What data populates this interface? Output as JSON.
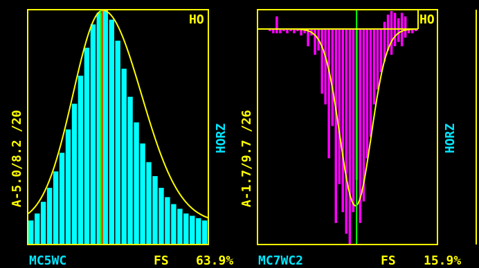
{
  "colors": {
    "background": "#000000",
    "frame": "#ffff00",
    "yellow_text": "#ffff00",
    "cyan_text": "#00e5ff",
    "fit_curve": "#ffff00",
    "center_line_green": "#00ff00",
    "center_line_orange": "#ff8000"
  },
  "panels": [
    {
      "id": "left",
      "side_label": "A-5.0/8.2 /20",
      "corner_label": "HO",
      "axis_label": "HORZ",
      "bottom_name": "MC5WC",
      "bottom_fs": "FS",
      "bottom_pct": "63.9%"
    },
    {
      "id": "right",
      "side_label": "A-1.7/9.7 /26",
      "corner_label": "HO",
      "axis_label": "HORZ",
      "bottom_name": "MC7WC2",
      "bottom_fs": "FS",
      "bottom_pct": "15.9%"
    }
  ],
  "chart_data": [
    {
      "type": "bar",
      "orientation": "up",
      "bar_color": "#00ffff",
      "n_bins": 29,
      "ylim": [
        0,
        100
      ],
      "values": [
        10,
        13,
        18,
        24,
        31,
        39,
        49,
        60,
        72,
        84,
        94,
        99,
        100,
        96,
        87,
        75,
        63,
        52,
        43,
        35,
        29,
        24,
        20,
        17,
        15,
        13,
        12,
        11,
        10
      ],
      "fit": {
        "shape": "asymmetric-gaussian",
        "peak_bin": 11.5,
        "peak": 100,
        "baseline": 9,
        "sigma_left": 4.8,
        "sigma_right": 6.2
      },
      "center_bin": 11.5
    },
    {
      "type": "bar",
      "orientation": "down",
      "bar_color": "#ff00ff",
      "n_bins": 46,
      "ylim": [
        0,
        100
      ],
      "values": [
        0,
        0,
        0,
        1,
        2,
        2,
        2,
        1,
        2,
        1,
        2,
        1,
        3,
        2,
        8,
        3,
        12,
        10,
        30,
        35,
        60,
        45,
        90,
        72,
        85,
        95,
        100,
        85,
        70,
        90,
        80,
        60,
        50,
        35,
        28,
        20,
        15,
        10,
        12,
        8,
        6,
        8,
        4,
        2,
        2,
        1
      ],
      "spikes_up": [
        0,
        0,
        0,
        0,
        0,
        7,
        0,
        0,
        0,
        0,
        0,
        0,
        0,
        0,
        0,
        0,
        0,
        0,
        0,
        0,
        0,
        0,
        0,
        0,
        0,
        0,
        0,
        0,
        0,
        0,
        0,
        0,
        0,
        0,
        0,
        0,
        4,
        8,
        10,
        9,
        6,
        9,
        7,
        0,
        0,
        0
      ],
      "fit": {
        "shape": "gaussian",
        "peak_bin": 27.5,
        "peak": 82,
        "baseline": 0,
        "sigma_left": 4.5,
        "sigma_right": 4.5
      },
      "center_bin": 27.8
    }
  ]
}
